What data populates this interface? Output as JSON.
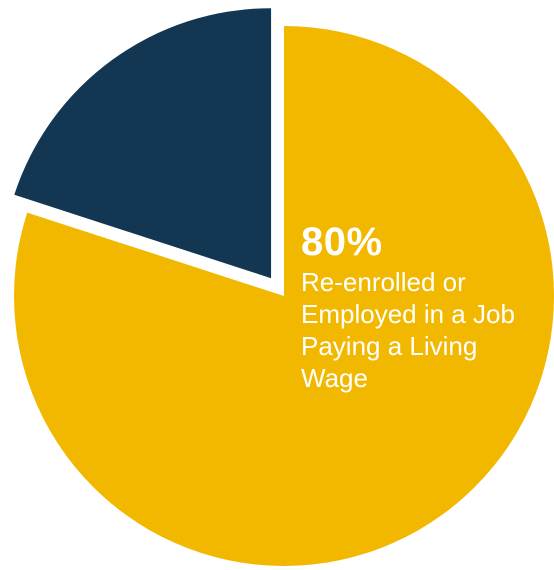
{
  "chart_data": {
    "type": "pie",
    "slices": [
      {
        "value": 80,
        "color": "#F2B800",
        "exploded": false
      },
      {
        "value": 20,
        "color": "#133753",
        "exploded": true
      }
    ],
    "annotations": [
      {
        "slice": 0,
        "value_label": "80%",
        "text": "Re-enrolled or\nEmployed in a Job\nPaying a Living\nWage"
      }
    ]
  }
}
